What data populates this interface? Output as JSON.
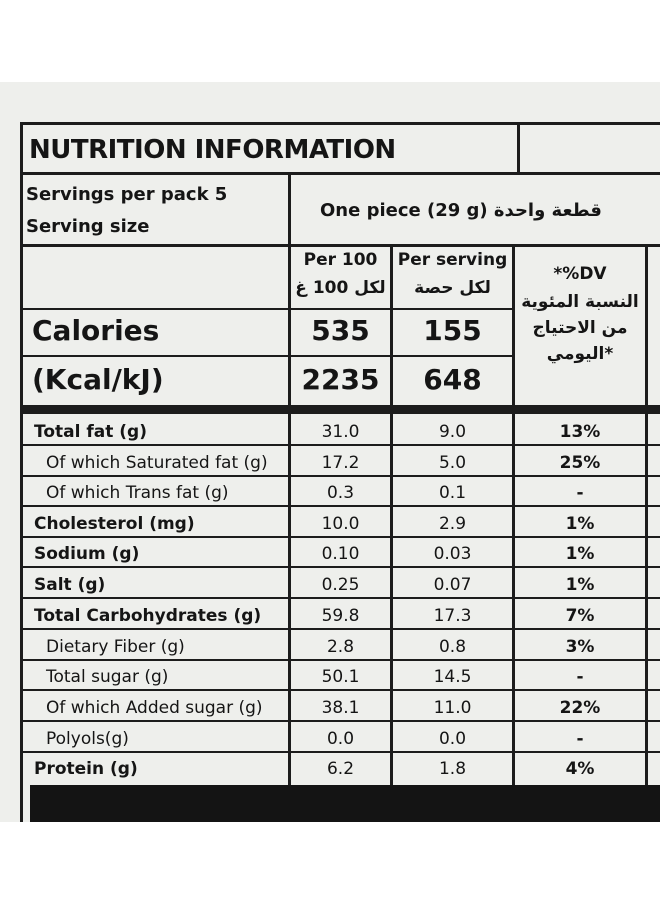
{
  "title": "NUTRITION INFORMATION",
  "servings_per_pack": "Servings per pack 5",
  "serving_size_label": "Serving size",
  "serving_size_value": "One piece (29 g) قطعة واحدة",
  "columns": {
    "per100_en": "Per 100",
    "per100_ar": "لكل 100 غ",
    "perserving_en": "Per serving",
    "perserving_ar": "لكل حصة",
    "dv_line1": "*%DV",
    "dv_line2": "النسبة المئوية",
    "dv_line3": "من الاحتياج",
    "dv_line4": "اليومي*"
  },
  "calories": {
    "label": "Calories",
    "per100": "535",
    "perserving": "155"
  },
  "energy": {
    "label": "(Kcal/kJ)",
    "per100": "2235",
    "perserving": "648"
  },
  "rows": [
    {
      "name": "Total fat (g)",
      "per100": "31.0",
      "perserving": "9.0",
      "dv": "13%"
    },
    {
      "name": "Of which Saturated fat (g)",
      "per100": "17.2",
      "perserving": "5.0",
      "dv": "25%"
    },
    {
      "name": "Of which Trans fat (g)",
      "per100": "0.3",
      "perserving": "0.1",
      "dv": "-"
    },
    {
      "name": "Cholesterol (mg)",
      "per100": "10.0",
      "perserving": "2.9",
      "dv": "1%"
    },
    {
      "name": "Sodium (g)",
      "per100": "0.10",
      "perserving": "0.03",
      "dv": "1%"
    },
    {
      "name": "Salt (g)",
      "per100": "0.25",
      "perserving": "0.07",
      "dv": "1%"
    },
    {
      "name": "Total Carbohydrates (g)",
      "per100": "59.8",
      "perserving": "17.3",
      "dv": "7%"
    },
    {
      "name": "Dietary Fiber (g)",
      "per100": "2.8",
      "perserving": "0.8",
      "dv": "3%"
    },
    {
      "name": "Total sugar (g)",
      "per100": "50.1",
      "perserving": "14.5",
      "dv": "-"
    },
    {
      "name": "Of which Added sugar (g)",
      "per100": "38.1",
      "perserving": "11.0",
      "dv": "22%"
    },
    {
      "name": "Polyols(g)",
      "per100": "0.0",
      "perserving": "0.0",
      "dv": "-"
    },
    {
      "name": "Protein (g)",
      "per100": "6.2",
      "perserving": "1.8",
      "dv": "4%"
    }
  ]
}
